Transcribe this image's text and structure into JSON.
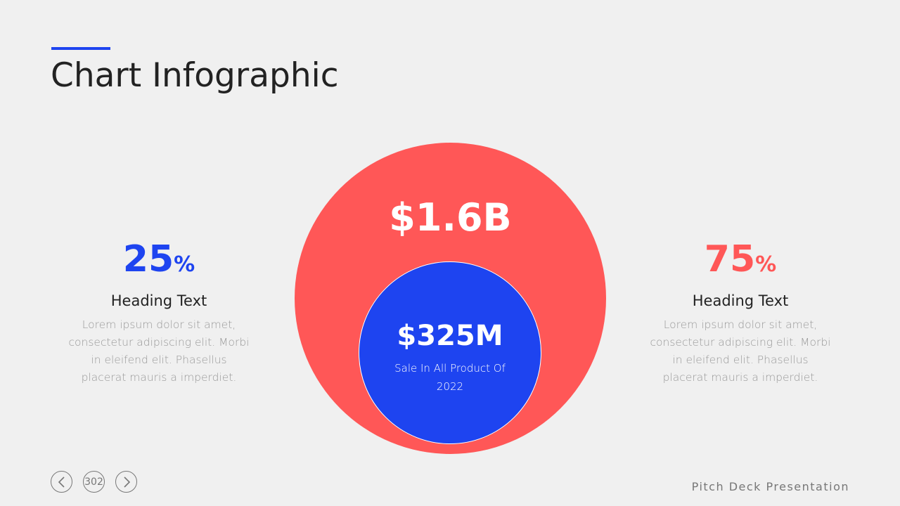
{
  "title": "Chart Infographic",
  "left": {
    "value": "25",
    "unit": "%",
    "heading": "Heading Text",
    "body": "Lorem ipsum dolor sit amet, consectetur adipiscing elit. Morbi in eleifend elit. Phasellus placerat mauris a imperdiet.",
    "color": "#1e44f0"
  },
  "right": {
    "value": "75",
    "unit": "%",
    "heading": "Heading Text",
    "body": "Lorem ipsum dolor sit amet, consectetur adipiscing elit. Morbi in eleifend elit. Phasellus placerat mauris a imperdiet.",
    "color": "#ff5757"
  },
  "outer_circle": {
    "value": "$1.6B",
    "color": "#ff5757"
  },
  "inner_circle": {
    "value": "$325M",
    "caption": "Sale In All Product Of 2022",
    "color": "#1e44f0"
  },
  "nav": {
    "prev_icon": "chevron-left-icon",
    "page": "302",
    "next_icon": "chevron-right-icon"
  },
  "footer": "Pitch Deck Presentation"
}
